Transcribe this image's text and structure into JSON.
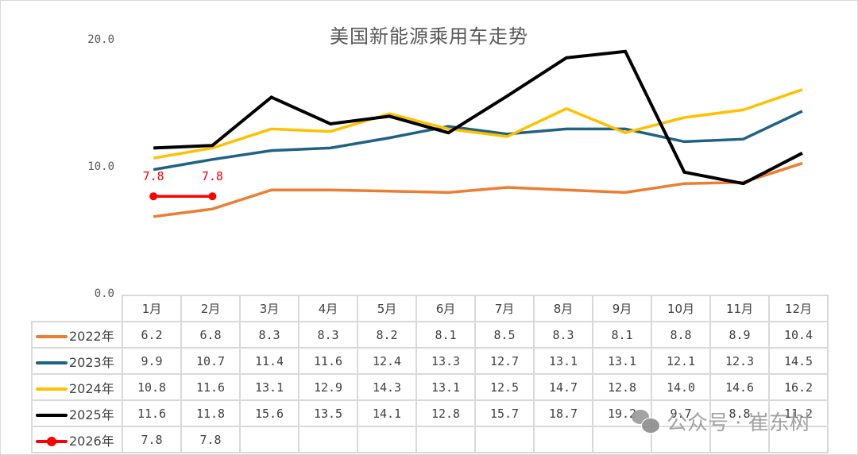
{
  "chart_data": {
    "type": "line",
    "title": "美国新能源乘用车走势",
    "xlabel": "",
    "ylabel": "",
    "ylim": [
      0,
      20
    ],
    "yticks": [
      "0.0",
      "10.0",
      "20.0"
    ],
    "grid": false,
    "legend_position": "data-table",
    "categories": [
      "1月",
      "2月",
      "3月",
      "4月",
      "5月",
      "6月",
      "7月",
      "8月",
      "9月",
      "10月",
      "11月",
      "12月"
    ],
    "series": [
      {
        "name": "2022年",
        "color": "#ED7D31",
        "values": [
          6.2,
          6.8,
          8.3,
          8.3,
          8.2,
          8.1,
          8.5,
          8.3,
          8.1,
          8.8,
          8.9,
          10.4
        ]
      },
      {
        "name": "2023年",
        "color": "#1F6284",
        "values": [
          9.9,
          10.7,
          11.4,
          11.6,
          12.4,
          13.3,
          12.7,
          13.1,
          13.1,
          12.1,
          12.3,
          14.5
        ]
      },
      {
        "name": "2024年",
        "color": "#FFC000",
        "values": [
          10.8,
          11.6,
          13.1,
          12.9,
          14.3,
          13.1,
          12.5,
          14.7,
          12.8,
          14.0,
          14.6,
          16.2
        ]
      },
      {
        "name": "2025年",
        "color": "#000000",
        "values": [
          11.6,
          11.8,
          15.6,
          13.5,
          14.1,
          12.8,
          15.7,
          18.7,
          19.2,
          9.7,
          8.8,
          11.2
        ]
      },
      {
        "name": "2026年",
        "color": "#FF0000",
        "marker": "circle",
        "data_labels": true,
        "values": [
          7.8,
          7.8,
          null,
          null,
          null,
          null,
          null,
          null,
          null,
          null,
          null,
          null
        ]
      }
    ]
  },
  "table": {
    "rows_display": [
      [
        "6.2",
        "6.8",
        "8.3",
        "8.3",
        "8.2",
        "8.1",
        "8.5",
        "8.3",
        "8.1",
        "8.8",
        "8.9",
        "10.4"
      ],
      [
        "9.9",
        "10.7",
        "11.4",
        "11.6",
        "12.4",
        "13.3",
        "12.7",
        "13.1",
        "13.1",
        "12.1",
        "12.3",
        "14.5"
      ],
      [
        "10.8",
        "11.6",
        "13.1",
        "12.9",
        "14.3",
        "13.1",
        "12.5",
        "14.7",
        "12.8",
        "14.0",
        "14.6",
        "16.2"
      ],
      [
        "11.6",
        "11.8",
        "15.6",
        "13.5",
        "14.1",
        "12.8",
        "15.7",
        "18.7",
        "19.2",
        "9.7",
        "8.8",
        "11.2"
      ],
      [
        "7.8",
        "7.8",
        "",
        "",
        "",
        "",
        "",
        "",
        "",
        "",
        "",
        ""
      ]
    ]
  },
  "watermark": {
    "text": "公众号 · 崔东树",
    "icon": "wechat-icon"
  }
}
